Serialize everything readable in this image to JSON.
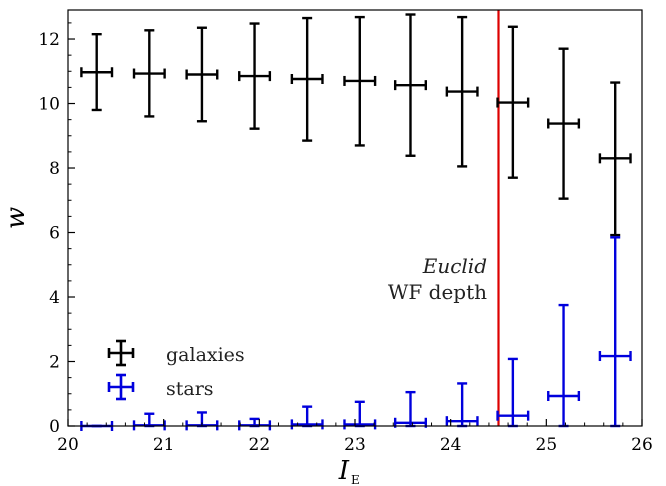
{
  "chart_data": {
    "type": "scatter",
    "xlabel": "I",
    "xlabel_sub": "E",
    "ylabel": "w",
    "xlim": [
      20,
      26
    ],
    "ylim": [
      0,
      12.9
    ],
    "xticks": [
      "20",
      "21",
      "22",
      "23",
      "24",
      "25",
      "26"
    ],
    "yticks": [
      "0",
      "2",
      "4",
      "6",
      "8",
      "10",
      "12"
    ],
    "grid": false,
    "legend_position": "lower-left",
    "vline": {
      "x": 24.5,
      "color": "#dd0000"
    },
    "annotation": {
      "line1": "Euclid",
      "line2": "WF depth"
    },
    "series": [
      {
        "name": "galaxies",
        "color": "#000000",
        "points": [
          {
            "x": 20.3,
            "y": 10.97,
            "xerr": 0.16,
            "ylow": 9.8,
            "yhigh": 12.15
          },
          {
            "x": 20.85,
            "y": 10.93,
            "xerr": 0.16,
            "ylow": 9.6,
            "yhigh": 12.27
          },
          {
            "x": 21.4,
            "y": 10.9,
            "xerr": 0.16,
            "ylow": 9.45,
            "yhigh": 12.35
          },
          {
            "x": 21.95,
            "y": 10.85,
            "xerr": 0.16,
            "ylow": 9.22,
            "yhigh": 12.48
          },
          {
            "x": 22.5,
            "y": 10.76,
            "xerr": 0.16,
            "ylow": 8.85,
            "yhigh": 12.65
          },
          {
            "x": 23.05,
            "y": 10.7,
            "xerr": 0.16,
            "ylow": 8.7,
            "yhigh": 12.68
          },
          {
            "x": 23.58,
            "y": 10.57,
            "xerr": 0.16,
            "ylow": 8.38,
            "yhigh": 12.76
          },
          {
            "x": 24.12,
            "y": 10.37,
            "xerr": 0.16,
            "ylow": 8.05,
            "yhigh": 12.68
          },
          {
            "x": 24.65,
            "y": 10.03,
            "xerr": 0.16,
            "ylow": 7.7,
            "yhigh": 12.38
          },
          {
            "x": 25.18,
            "y": 9.38,
            "xerr": 0.16,
            "ylow": 7.05,
            "yhigh": 11.7
          },
          {
            "x": 25.72,
            "y": 8.3,
            "xerr": 0.16,
            "ylow": 5.92,
            "yhigh": 10.65
          }
        ]
      },
      {
        "name": "stars",
        "color": "#0000dd",
        "points": [
          {
            "x": 20.3,
            "y": 0.0,
            "xerr": 0.16,
            "ylow": 0.0,
            "yhigh": 0.0
          },
          {
            "x": 20.85,
            "y": 0.02,
            "xerr": 0.16,
            "ylow": 0.0,
            "yhigh": 0.38
          },
          {
            "x": 21.4,
            "y": 0.02,
            "xerr": 0.16,
            "ylow": 0.0,
            "yhigh": 0.42
          },
          {
            "x": 21.95,
            "y": 0.02,
            "xerr": 0.16,
            "ylow": 0.0,
            "yhigh": 0.22
          },
          {
            "x": 22.5,
            "y": 0.05,
            "xerr": 0.16,
            "ylow": 0.0,
            "yhigh": 0.6
          },
          {
            "x": 23.05,
            "y": 0.05,
            "xerr": 0.16,
            "ylow": 0.0,
            "yhigh": 0.75
          },
          {
            "x": 23.58,
            "y": 0.1,
            "xerr": 0.16,
            "ylow": 0.0,
            "yhigh": 1.05
          },
          {
            "x": 24.12,
            "y": 0.15,
            "xerr": 0.16,
            "ylow": 0.0,
            "yhigh": 1.32
          },
          {
            "x": 24.65,
            "y": 0.32,
            "xerr": 0.16,
            "ylow": 0.0,
            "yhigh": 2.08
          },
          {
            "x": 25.18,
            "y": 0.93,
            "xerr": 0.16,
            "ylow": 0.0,
            "yhigh": 3.75
          },
          {
            "x": 25.72,
            "y": 2.17,
            "xerr": 0.16,
            "ylow": 0.0,
            "yhigh": 5.85
          }
        ]
      }
    ]
  }
}
